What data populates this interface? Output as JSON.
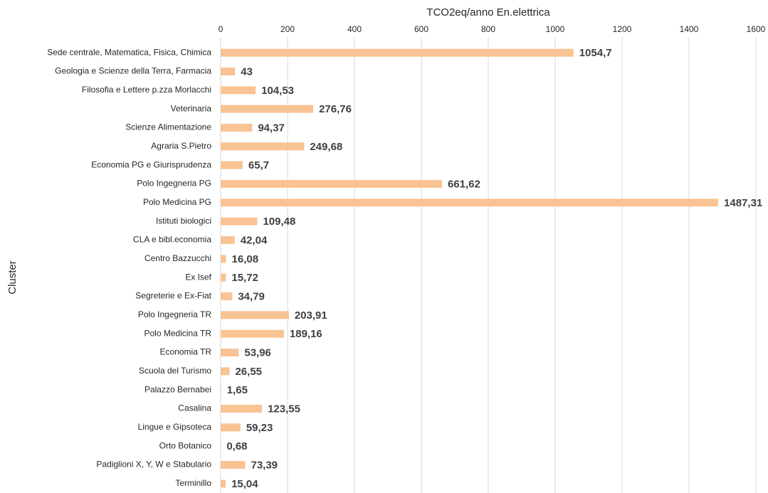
{
  "chart_data": {
    "type": "bar",
    "orientation": "horizontal",
    "x_label": "TCO2eq/anno En.elettrica",
    "y_label": "Cluster",
    "categories": [
      "Sede centrale, Matematica, Fisica, Chimica",
      "Geologia e Scienze della Terra, Farmacia",
      "Filosofia e Lettere p.zza Morlacchi",
      "Veterinaria",
      "Scienze Alimentazione",
      "Agraria S.Pietro",
      "Economia PG e Giurisprudenza",
      "Polo Ingegneria PG",
      "Polo Medicina PG",
      "Istituti biologici",
      "CLA e bibl.economia",
      "Centro Bazzucchi",
      "Ex Isef",
      "Segreterie e Ex-Fiat",
      "Polo Ingegneria TR",
      "Polo Medicina TR",
      "Economia TR",
      "Scuola del Turismo",
      "Palazzo Bernabei",
      "Casalina",
      "Lingue e Gipsoteca",
      "Orto Botanico",
      "Padiglioni X, Y, W e Stabulario",
      "Terminillo"
    ],
    "values": [
      1054.7,
      43,
      104.53,
      276.76,
      94.37,
      249.68,
      65.7,
      661.62,
      1487.31,
      109.48,
      42.04,
      16.08,
      15.72,
      34.79,
      203.91,
      189.16,
      53.96,
      26.55,
      1.65,
      123.55,
      59.23,
      0.68,
      73.39,
      15.04
    ],
    "value_labels": [
      "1054,7",
      "43",
      "104,53",
      "276,76",
      "94,37",
      "249,68",
      "65,7",
      "661,62",
      "1487,31",
      "109,48",
      "42,04",
      "16,08",
      "15,72",
      "34,79",
      "203,91",
      "189,16",
      "53,96",
      "26,55",
      "1,65",
      "123,55",
      "59,23",
      "0,68",
      "73,39",
      "15,04"
    ],
    "color": "#f9c394",
    "xlim": [
      0,
      1600
    ],
    "xticks": [
      0,
      200,
      400,
      600,
      800,
      1000,
      1200,
      1400,
      1600
    ],
    "grid": true
  }
}
